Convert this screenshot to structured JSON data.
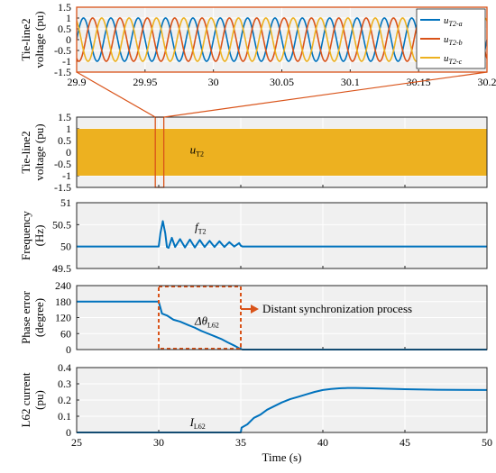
{
  "colors": {
    "blue": "#0072BD",
    "red": "#D95319",
    "yellow": "#EDB120",
    "frame_orange": "#D95319",
    "panel_bg": "#F0F0F0",
    "grid": "#FFFFFF"
  },
  "chart_data": [
    {
      "id": "zoom",
      "type": "line",
      "ylabel": [
        "Tie-line2",
        "voltage (pu)"
      ],
      "xlim": [
        29.9,
        30.2
      ],
      "ylim": [
        -1.5,
        1.5
      ],
      "xticks": [
        "29.9",
        "29.95",
        "30",
        "30.05",
        "30.1",
        "30.15",
        "30.2"
      ],
      "yticks": [
        "1.5",
        "1",
        "0.5",
        "0",
        "-0.5",
        "-1",
        "-1.5"
      ],
      "frequency_hz": 50,
      "amplitude": 1,
      "series": [
        {
          "name": "u",
          "sub": "T2-a",
          "color": "#0072BD",
          "phase_deg": 0
        },
        {
          "name": "u",
          "sub": "T2-b",
          "color": "#D95319",
          "phase_deg": -120
        },
        {
          "name": "u",
          "sub": "T2-c",
          "color": "#EDB120",
          "phase_deg": 120
        }
      ],
      "grid": true,
      "legend": "top-right"
    },
    {
      "id": "voltage",
      "type": "area",
      "ylabel": [
        "Tie-line2",
        "voltage (pu)"
      ],
      "xlim": [
        25,
        50
      ],
      "ylim": [
        -1.5,
        1.5
      ],
      "yticks": [
        "1.5",
        "1",
        "0.5",
        "0",
        "-0.5",
        "-1",
        "-1.5"
      ],
      "band": [
        -1,
        1
      ],
      "label": {
        "main": "u",
        "sub": "T2"
      },
      "zoom_window": [
        29.9,
        30.2
      ],
      "grid": true
    },
    {
      "id": "frequency",
      "type": "line",
      "ylabel": [
        "Frequency",
        "(Hz)"
      ],
      "xlim": [
        25,
        50
      ],
      "ylim": [
        49.5,
        51
      ],
      "yticks": [
        "51",
        "50.5",
        "50",
        "49.5"
      ],
      "label": {
        "main": "f",
        "sub": "T2"
      },
      "x": [
        25,
        30,
        30.1,
        30.25,
        30.4,
        30.5,
        30.6,
        30.8,
        31.0,
        31.3,
        31.6,
        31.9,
        32.2,
        32.5,
        32.8,
        33.1,
        33.4,
        33.7,
        34.0,
        34.3,
        34.6,
        34.9,
        35.0,
        35.1,
        35.3,
        50
      ],
      "y": [
        50.0,
        50.0,
        50.3,
        50.58,
        50.3,
        49.99,
        49.97,
        50.2,
        49.99,
        50.17,
        49.98,
        50.16,
        49.98,
        50.15,
        49.99,
        50.13,
        49.99,
        50.12,
        49.99,
        50.1,
        50.0,
        50.08,
        50.02,
        50.0,
        50.0,
        50.0
      ],
      "grid": true
    },
    {
      "id": "phase",
      "type": "line",
      "ylabel": [
        "Phase error",
        "(degree)"
      ],
      "xlim": [
        25,
        50
      ],
      "ylim": [
        0,
        240
      ],
      "yticks": [
        "240",
        "180",
        "120",
        "60",
        "0"
      ],
      "label": {
        "main": "Δθ",
        "sub": "L62"
      },
      "annotation": "Distant synchronization process",
      "box": {
        "x": [
          30,
          35
        ],
        "y": [
          0,
          240
        ]
      },
      "x": [
        25,
        30,
        30.2,
        30.5,
        30.9,
        31.3,
        31.8,
        32.2,
        32.6,
        33.0,
        33.4,
        33.8,
        34.2,
        34.6,
        34.9,
        35.1,
        50
      ],
      "y": [
        180,
        180,
        135,
        128,
        112,
        105,
        92,
        82,
        70,
        60,
        50,
        40,
        27,
        15,
        5,
        0,
        0
      ],
      "grid": true
    },
    {
      "id": "current",
      "type": "line",
      "ylabel": [
        "L62 current",
        "(pu)"
      ],
      "xlabel": "Time (s)",
      "xlim": [
        25,
        50
      ],
      "ylim": [
        0,
        0.4
      ],
      "xticks": [
        "25",
        "30",
        "35",
        "40",
        "45",
        "50"
      ],
      "yticks": [
        "0.4",
        "0.3",
        "0.2",
        "0.1",
        "0"
      ],
      "label": {
        "main": "I",
        "sub": "L62"
      },
      "x": [
        25,
        35,
        35.05,
        35.4,
        35.8,
        36.2,
        36.6,
        37.0,
        37.5,
        38.0,
        38.5,
        39.0,
        39.5,
        40.0,
        40.5,
        41.0,
        41.5,
        42.0,
        43.0,
        45.0,
        47.0,
        50
      ],
      "y": [
        0,
        0,
        0.03,
        0.05,
        0.09,
        0.11,
        0.14,
        0.16,
        0.185,
        0.205,
        0.22,
        0.235,
        0.25,
        0.262,
        0.268,
        0.272,
        0.274,
        0.274,
        0.272,
        0.267,
        0.263,
        0.262
      ],
      "grid": true
    }
  ]
}
